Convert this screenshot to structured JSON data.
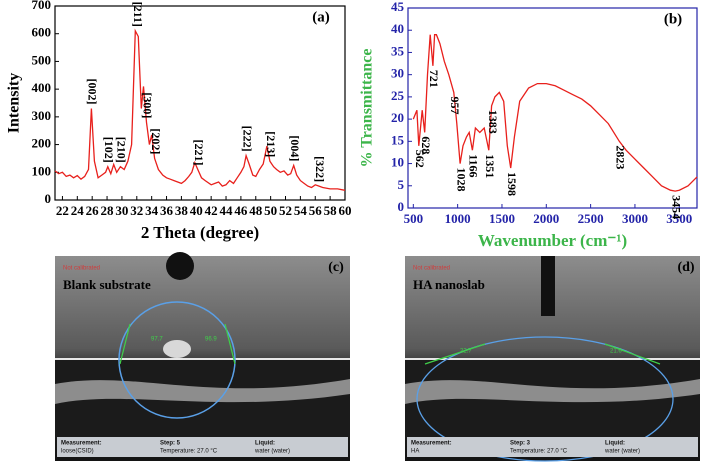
{
  "chart_data": [
    {
      "type": "line",
      "panel_label": "(a)",
      "x_label": "2 Theta (degree)",
      "y_label": "Intensity",
      "axis_color": "#000000",
      "x_label_color": "#000000",
      "y_label_color": "#000000",
      "xlim": [
        21,
        60
      ],
      "xticks": [
        22,
        24,
        26,
        28,
        30,
        32,
        34,
        36,
        38,
        40,
        42,
        44,
        46,
        48,
        50,
        52,
        54,
        56,
        58,
        60
      ],
      "ylim": [
        0,
        700
      ],
      "yticks": [
        0,
        100,
        200,
        300,
        400,
        500,
        600,
        700
      ],
      "x": [
        21,
        21.5,
        22,
        22.5,
        23,
        23.5,
        24,
        24.5,
        25,
        25.5,
        25.9,
        26.3,
        26.8,
        27.3,
        27.8,
        28.1,
        28.5,
        28.9,
        29.3,
        29.8,
        30.3,
        30.8,
        31.3,
        31.8,
        32.2,
        32.6,
        32.9,
        33.3,
        33.7,
        34.0,
        34.4,
        34.9,
        35.5,
        36,
        36.5,
        37,
        37.5,
        38,
        38.5,
        39,
        39.4,
        39.8,
        40.2,
        40.7,
        41.2,
        42,
        42.5,
        43,
        43.5,
        44,
        44.5,
        45,
        45.5,
        46,
        46.4,
        46.7,
        47.1,
        47.6,
        48,
        48.5,
        49,
        49.5,
        49.9,
        50.4,
        50.8,
        51.3,
        51.8,
        52.3,
        52.7,
        53.1,
        53.5,
        54,
        54.5,
        55,
        55.5,
        56,
        56.5,
        57,
        58,
        59,
        60
      ],
      "series": [
        {
          "color": "#e8201c",
          "values": [
            105,
            95,
            100,
            85,
            90,
            80,
            88,
            75,
            85,
            110,
            330,
            140,
            80,
            90,
            100,
            120,
            95,
            128,
            100,
            120,
            110,
            140,
            200,
            610,
            590,
            330,
            410,
            280,
            200,
            235,
            150,
            110,
            90,
            80,
            75,
            70,
            65,
            60,
            70,
            85,
            100,
            135,
            110,
            80,
            70,
            55,
            60,
            65,
            50,
            55,
            70,
            60,
            80,
            100,
            120,
            160,
            130,
            90,
            85,
            110,
            130,
            195,
            140,
            120,
            110,
            100,
            105,
            90,
            95,
            125,
            90,
            70,
            60,
            50,
            45,
            55,
            50,
            45,
            40,
            40,
            35
          ]
        }
      ],
      "annotations": [
        {
          "text": "[002]",
          "x": 25.9
        },
        {
          "text": "[102]",
          "x": 28.1
        },
        {
          "text": "[210]",
          "x": 29.8
        },
        {
          "text": "[211]",
          "x": 32.0
        },
        {
          "text": "[300]",
          "x": 33.3
        },
        {
          "text": "[202]",
          "x": 34.4
        },
        {
          "text": "[221]",
          "x": 40.2
        },
        {
          "text": "[222]",
          "x": 46.7
        },
        {
          "text": "[213]",
          "x": 49.9
        },
        {
          "text": "[004]",
          "x": 53.1
        },
        {
          "text": "[322]",
          "x": 56.5
        }
      ]
    },
    {
      "type": "line",
      "panel_label": "(b)",
      "x_label": "Wavenumber (cm⁻¹)",
      "y_label": "% Transmittance",
      "axis_color": "#2323a8",
      "x_label_color": "#3cb54a",
      "y_label_color": "#3cb54a",
      "xlim": [
        440,
        3700
      ],
      "xticks": [
        500,
        1000,
        1500,
        2000,
        2500,
        3000,
        3500
      ],
      "ylim": [
        0,
        45
      ],
      "yticks": [
        0,
        5,
        10,
        15,
        20,
        25,
        30,
        35,
        40,
        45
      ],
      "x": [
        500,
        540,
        562,
        600,
        628,
        660,
        690,
        721,
        740,
        760,
        800,
        850,
        900,
        957,
        990,
        1028,
        1060,
        1100,
        1130,
        1166,
        1200,
        1250,
        1300,
        1351,
        1383,
        1420,
        1470,
        1520,
        1560,
        1598,
        1640,
        1700,
        1800,
        1900,
        2000,
        2100,
        2200,
        2300,
        2400,
        2500,
        2600,
        2700,
        2823,
        2900,
        3000,
        3100,
        3200,
        3300,
        3400,
        3454,
        3500,
        3600,
        3700
      ],
      "series": [
        {
          "color": "#e8201c",
          "values": [
            20,
            22,
            14,
            22,
            17,
            30,
            39,
            32,
            39,
            39,
            37,
            33,
            30,
            26,
            19,
            10,
            14,
            16,
            17,
            13,
            18,
            17,
            18,
            13,
            23,
            25,
            26,
            24,
            14,
            9,
            16,
            24,
            27,
            28,
            28,
            27.5,
            26.5,
            25.5,
            24.5,
            23,
            21,
            19,
            15,
            13,
            11,
            9,
            7,
            5,
            4,
            3.8,
            4,
            5,
            7
          ]
        }
      ],
      "peak_labels": [
        562,
        628,
        721,
        957,
        1028,
        1166,
        1351,
        1383,
        1598,
        2823,
        3454
      ]
    }
  ],
  "photos": [
    {
      "panel_label": "(c)",
      "status": "Not calibrated",
      "title": "Blank substrate",
      "left_angle": "97.7",
      "right_angle": "96.9",
      "measurement_label": "Measurement:",
      "measurement": "loose(CSID)",
      "step": "Step: 5",
      "temperature": "Temperature: 27.0 °C",
      "liquid_label": "Liquid:",
      "liquid": "water (water)"
    },
    {
      "panel_label": "(d)",
      "status": "Not calibrated",
      "title": "HA nanoslab",
      "left_angle": "22.7",
      "right_angle": "21.6",
      "measurement_label": "Measurement:",
      "measurement": "HA",
      "step": "Step: 3",
      "temperature": "Temperature: 27.0 °C",
      "liquid_label": "Liquid:",
      "liquid": "water (water)"
    }
  ]
}
